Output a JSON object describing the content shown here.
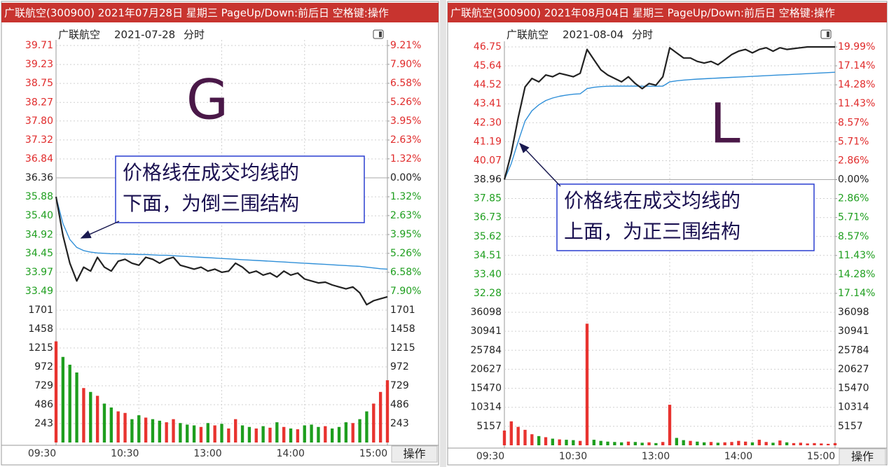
{
  "chart_data": [
    {
      "type": "line",
      "title": "广联航空(300900) 2021年07月28日 星期三 PageUp/Down:前后日 空格键:操作",
      "stock_name": "广联航空",
      "date": "2021-07-28",
      "mode": "分时",
      "label": "G",
      "annotation": [
        "价格线在成交均线的",
        "下面，为倒三围结构"
      ],
      "button": "操作",
      "grid": true,
      "x": [
        0,
        5,
        10,
        15,
        20,
        25,
        30,
        35,
        40,
        45,
        50,
        55,
        60,
        65,
        70,
        75,
        80,
        85,
        90,
        95,
        100,
        105,
        110,
        115,
        120,
        125,
        130,
        135,
        140,
        145,
        150,
        155,
        160,
        165,
        170,
        175,
        180,
        185,
        190,
        195,
        200,
        205,
        210,
        215,
        220,
        225,
        230,
        235,
        240
      ],
      "xlim": [
        0,
        240
      ],
      "xticks": [
        {
          "value": 0,
          "label": "09:30"
        },
        {
          "value": 60,
          "label": "10:30"
        },
        {
          "value": 120,
          "label": "13:00"
        },
        {
          "value": 180,
          "label": "14:00"
        },
        {
          "value": 240,
          "label": "15:00"
        }
      ],
      "ylim": [
        33.49,
        39.71
      ],
      "yticks": [
        39.71,
        39.23,
        38.75,
        38.27,
        {
          "value": 37.8,
          "label": "37.80"
        },
        37.32,
        36.84,
        36.36,
        35.88,
        {
          "value": 35.4,
          "label": "35.40"
        },
        34.92,
        34.45,
        33.97,
        33.49
      ],
      "y2lim": [
        -7.9,
        9.21
      ],
      "y2ticks": [
        {
          "value": 9.21,
          "label": "9.21%"
        },
        {
          "value": 7.9,
          "label": "7.90%"
        },
        {
          "value": 6.58,
          "label": "6.58%"
        },
        {
          "value": 5.26,
          "label": "5.26%"
        },
        {
          "value": 3.95,
          "label": "3.95%"
        },
        {
          "value": 2.63,
          "label": "2.63%"
        },
        {
          "value": 1.32,
          "label": "1.32%"
        },
        {
          "value": 0,
          "label": "0.00%"
        },
        {
          "value": -1.32,
          "label": "1.32%"
        },
        {
          "value": -2.63,
          "label": "2.63%"
        },
        {
          "value": -3.95,
          "label": "3.95%"
        },
        {
          "value": -5.26,
          "label": "5.26%"
        },
        {
          "value": -6.58,
          "label": "6.58%"
        },
        {
          "value": -7.9,
          "label": "7.90%"
        }
      ],
      "series": [
        {
          "color": "#222222",
          "values": [
            35.88,
            34.9,
            34.2,
            33.75,
            34.1,
            34.0,
            34.35,
            34.1,
            34.0,
            34.25,
            34.3,
            34.2,
            34.15,
            34.35,
            34.3,
            34.2,
            34.3,
            34.35,
            34.15,
            34.1,
            34.05,
            34.1,
            34.0,
            34.05,
            33.97,
            34.0,
            34.2,
            34.1,
            33.95,
            34.0,
            33.9,
            33.95,
            33.85,
            34.0,
            33.9,
            33.95,
            33.8,
            33.75,
            33.7,
            33.72,
            33.65,
            33.6,
            33.55,
            33.6,
            33.45,
            33.15,
            33.25,
            33.3,
            33.35
          ]
        },
        {
          "color": "#2f8fd8",
          "values": [
            35.88,
            35.2,
            34.8,
            34.6,
            34.52,
            34.48,
            34.46,
            34.45,
            34.44,
            34.44,
            34.43,
            34.43,
            34.42,
            34.42,
            34.41,
            34.4,
            34.4,
            34.39,
            34.38,
            34.37,
            34.36,
            34.35,
            34.34,
            34.33,
            34.32,
            34.31,
            34.3,
            34.29,
            34.28,
            34.27,
            34.26,
            34.25,
            34.24,
            34.23,
            34.22,
            34.21,
            34.2,
            34.19,
            34.18,
            34.17,
            34.16,
            34.15,
            34.14,
            34.13,
            34.12,
            34.1,
            34.08,
            34.06,
            34.05
          ]
        }
      ],
      "volume": {
        "ylim": [
          0,
          1701
        ],
        "yticks": [
          1701,
          1458,
          1215,
          972,
          729,
          486,
          243
        ],
        "up_color": "#e8332f",
        "down_color": "#1e9e1e",
        "values": [
          1300,
          1100,
          1000,
          900,
          700,
          650,
          600,
          500,
          450,
          400,
          380,
          300,
          350,
          320,
          300,
          280,
          260,
          300,
          250,
          230,
          220,
          200,
          250,
          220,
          240,
          180,
          300,
          220,
          200,
          180,
          210,
          190,
          260,
          200,
          180,
          170,
          220,
          230,
          200,
          210,
          180,
          200,
          260,
          250,
          300,
          400,
          500,
          650,
          800
        ]
      }
    },
    {
      "type": "line",
      "title": "广联航空(300900) 2021年08月04日 星期三 PageUp/Down:前后日 空格键:操作",
      "stock_name": "广联航空",
      "date": "2021-08-04",
      "mode": "分时",
      "label": "L",
      "annotation": [
        "价格线在成交均线的",
        "上面，为正三围结构"
      ],
      "button": "操作",
      "grid": true,
      "x": [
        0,
        5,
        10,
        15,
        20,
        25,
        30,
        35,
        40,
        45,
        50,
        55,
        60,
        65,
        70,
        75,
        80,
        85,
        90,
        95,
        100,
        105,
        110,
        115,
        120,
        125,
        130,
        135,
        140,
        145,
        150,
        155,
        160,
        165,
        170,
        175,
        180,
        185,
        190,
        195,
        200,
        205,
        210,
        215,
        220,
        225,
        230,
        235,
        240
      ],
      "xlim": [
        0,
        240
      ],
      "xticks": [
        {
          "value": 0,
          "label": "09:30"
        },
        {
          "value": 60,
          "label": "10:30"
        },
        {
          "value": 120,
          "label": "13:00"
        },
        {
          "value": 180,
          "label": "14:00"
        },
        {
          "value": 240,
          "label": "15:00"
        }
      ],
      "ylim": [
        32.28,
        46.75
      ],
      "yticks": [
        46.75,
        45.64,
        44.52,
        43.41,
        {
          "value": 42.3,
          "label": "42.30"
        },
        41.19,
        40.07,
        38.96,
        37.85,
        36.73,
        35.62,
        34.51,
        {
          "value": 33.4,
          "label": "33.40"
        },
        32.28
      ],
      "y2lim": [
        -17.14,
        19.99
      ],
      "y2ticks": [
        {
          "value": 19.99,
          "label": "19.99%"
        },
        {
          "value": 17.14,
          "label": "17.14%"
        },
        {
          "value": 14.28,
          "label": "14.28%"
        },
        {
          "value": 11.43,
          "label": "11.43%"
        },
        {
          "value": 8.57,
          "label": "8.57%"
        },
        {
          "value": 5.71,
          "label": "5.71%"
        },
        {
          "value": 2.86,
          "label": "2.86%"
        },
        {
          "value": 0,
          "label": "0.00%"
        },
        {
          "value": -2.86,
          "label": "2.86%"
        },
        {
          "value": -5.71,
          "label": "5.71%"
        },
        {
          "value": -8.57,
          "label": "8.57%"
        },
        {
          "value": -11.43,
          "label": "11.43%"
        },
        {
          "value": -14.28,
          "label": "14.28%"
        },
        {
          "value": -17.14,
          "label": "17.14%"
        }
      ],
      "series": [
        {
          "color": "#222222",
          "values": [
            38.96,
            40.5,
            42.6,
            44.4,
            44.9,
            44.7,
            45.1,
            45.0,
            45.2,
            45.1,
            45.0,
            45.2,
            46.6,
            46.0,
            45.4,
            45.1,
            44.9,
            44.7,
            45.0,
            44.6,
            44.3,
            44.6,
            44.5,
            45.0,
            46.7,
            46.4,
            46.1,
            46.1,
            45.9,
            45.8,
            45.9,
            45.7,
            46.0,
            46.3,
            46.5,
            46.6,
            46.4,
            46.6,
            46.7,
            46.5,
            46.7,
            46.6,
            46.65,
            46.7,
            46.75,
            46.75,
            46.75,
            46.75,
            46.75
          ]
        },
        {
          "color": "#2f8fd8",
          "values": [
            38.96,
            39.9,
            41.2,
            42.4,
            43.0,
            43.35,
            43.6,
            43.75,
            43.85,
            43.92,
            43.97,
            44.0,
            44.3,
            44.38,
            44.42,
            44.44,
            44.45,
            44.45,
            44.45,
            44.45,
            44.44,
            44.44,
            44.44,
            44.45,
            44.7,
            44.76,
            44.8,
            44.83,
            44.86,
            44.88,
            44.9,
            44.92,
            44.94,
            44.96,
            44.98,
            45.0,
            45.02,
            45.04,
            45.06,
            45.08,
            45.1,
            45.12,
            45.14,
            45.16,
            45.18,
            45.2,
            45.22,
            45.24,
            45.26
          ]
        }
      ],
      "volume": {
        "ylim": [
          0,
          36098
        ],
        "yticks": [
          36098,
          30941,
          25784,
          20627,
          15470,
          10314,
          5157
        ],
        "up_color": "#e8332f",
        "down_color": "#1e9e1e",
        "values": [
          4000,
          6500,
          5000,
          4200,
          3000,
          2500,
          2200,
          1800,
          1600,
          1500,
          1400,
          1200,
          33000,
          1500,
          1200,
          1000,
          900,
          800,
          1000,
          900,
          700,
          800,
          600,
          900,
          11000,
          2000,
          1400,
          1200,
          1000,
          800,
          900,
          700,
          800,
          900,
          1200,
          1000,
          800,
          1500,
          900,
          700,
          1300,
          800,
          600,
          700,
          500,
          600,
          500,
          400,
          600
        ]
      }
    }
  ]
}
